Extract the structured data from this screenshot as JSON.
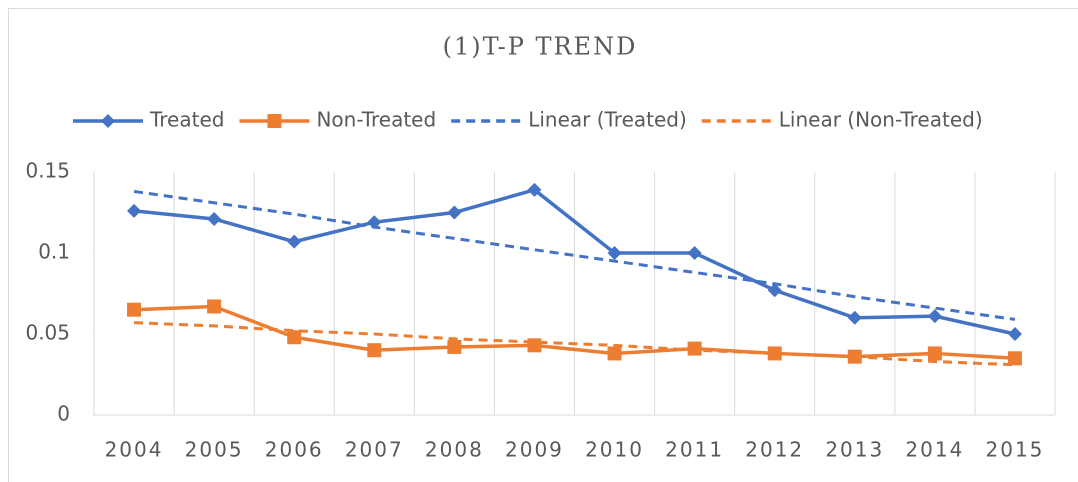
{
  "chart_data": {
    "type": "line",
    "title": "(1)T-P TREND",
    "categories": [
      "2004",
      "2005",
      "2006",
      "2007",
      "2008",
      "2009",
      "2010",
      "2011",
      "2012",
      "2013",
      "2014",
      "2015"
    ],
    "series": [
      {
        "name": "Treated",
        "color": "#4472c4",
        "marker": "diamond",
        "values": [
          0.126,
          0.121,
          0.107,
          0.119,
          0.125,
          0.139,
          0.1,
          0.1,
          0.077,
          0.06,
          0.061,
          0.05
        ]
      },
      {
        "name": "Non-Treated",
        "color": "#ed7d31",
        "marker": "square",
        "values": [
          0.065,
          0.067,
          0.048,
          0.04,
          0.042,
          0.043,
          0.038,
          0.041,
          0.038,
          0.036,
          0.038,
          0.035
        ]
      },
      {
        "name": "Linear (Treated)",
        "color": "#4472c4",
        "dash": true,
        "values": [
          0.138,
          0.131,
          0.124,
          0.116,
          0.109,
          0.102,
          0.095,
          0.088,
          0.081,
          0.073,
          0.066,
          0.059
        ]
      },
      {
        "name": "Linear (Non-Treated)",
        "color": "#ed7d31",
        "dash": true,
        "values": [
          0.057,
          0.055,
          0.052,
          0.05,
          0.047,
          0.045,
          0.043,
          0.04,
          0.038,
          0.036,
          0.033,
          0.031
        ]
      }
    ],
    "ylim": [
      0,
      0.15
    ],
    "yticks": [
      0,
      0.05,
      0.1,
      0.15
    ],
    "grid": "vertical",
    "legend": "top"
  }
}
